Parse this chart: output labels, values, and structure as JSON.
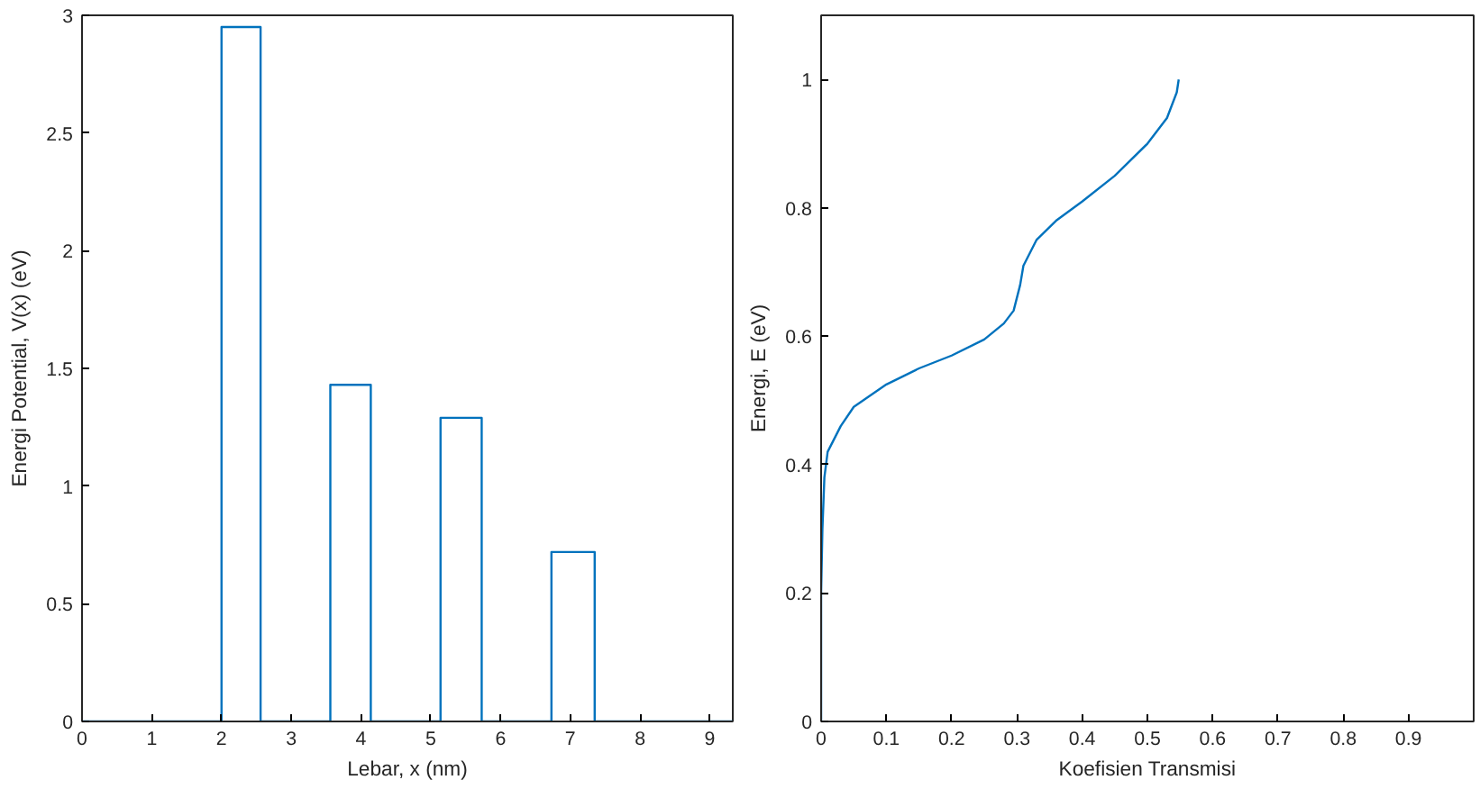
{
  "chart_data": [
    {
      "type": "line",
      "xlabel": "Lebar, x (nm)",
      "ylabel": "Energi Potential, V(x) (eV)",
      "xlim": [
        0,
        9.33
      ],
      "ylim": [
        0,
        3
      ],
      "xticks": [
        0,
        1,
        2,
        3,
        4,
        5,
        6,
        7,
        8,
        9
      ],
      "yticks": [
        0,
        0.5,
        1,
        1.5,
        2,
        2.5,
        3
      ],
      "series": [
        {
          "color": "#0072bd",
          "x": [
            0,
            2,
            2,
            2.56,
            2.56,
            3.56,
            3.56,
            4.14,
            4.14,
            5.14,
            5.14,
            5.73,
            5.73,
            6.73,
            6.73,
            7.35,
            7.35,
            9.33
          ],
          "values": [
            0,
            0,
            2.95,
            2.95,
            0,
            0,
            1.43,
            1.43,
            0,
            0,
            1.29,
            1.29,
            0,
            0,
            0.72,
            0.72,
            0,
            0
          ]
        }
      ]
    },
    {
      "type": "line",
      "xlabel": "Koefisien Transmisi",
      "ylabel": "Energi, E (eV)",
      "xlim": [
        0,
        1
      ],
      "ylim": [
        0,
        1.1
      ],
      "xticks": [
        0,
        0.1,
        0.2,
        0.3,
        0.4,
        0.5,
        0.6,
        0.7,
        0.8,
        0.9
      ],
      "yticks": [
        0,
        0.2,
        0.4,
        0.6,
        0.8,
        1
      ],
      "series": [
        {
          "color": "#0072bd",
          "x": [
            0,
            0,
            0.002,
            0.005,
            0.01,
            0.03,
            0.05,
            0.1,
            0.15,
            0.2,
            0.25,
            0.28,
            0.295,
            0.305,
            0.31,
            0.33,
            0.36,
            0.4,
            0.45,
            0.5,
            0.53,
            0.545,
            0.548
          ],
          "values": [
            0,
            0.2,
            0.3,
            0.38,
            0.42,
            0.46,
            0.49,
            0.525,
            0.55,
            0.57,
            0.595,
            0.62,
            0.64,
            0.68,
            0.71,
            0.75,
            0.78,
            0.81,
            0.85,
            0.9,
            0.94,
            0.98,
            1.0
          ]
        }
      ]
    }
  ]
}
